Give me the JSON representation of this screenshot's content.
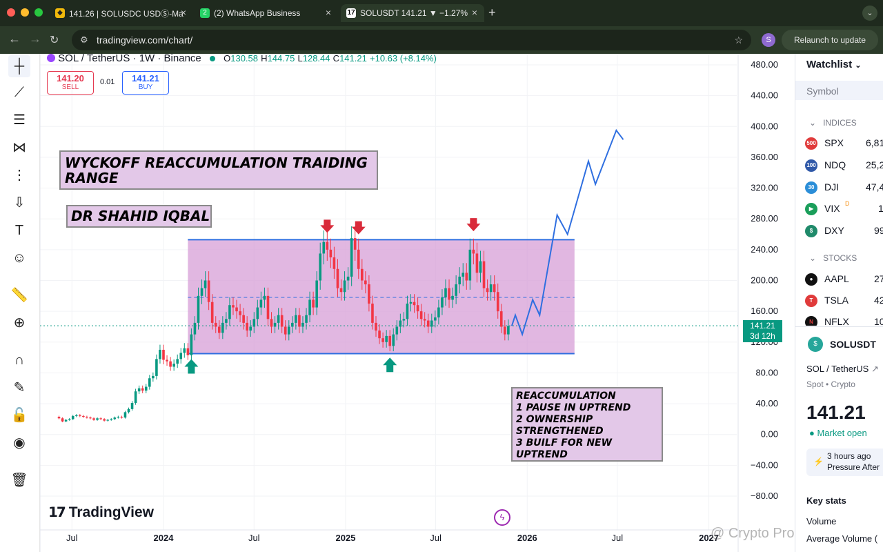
{
  "browser": {
    "tabs": [
      {
        "title": "141.26 | SOLUSDC USDⓈ-Ma",
        "icon": "binance-icon"
      },
      {
        "title": "(2) WhatsApp Business",
        "icon": "whatsapp-icon"
      },
      {
        "title": "SOLUSDT 141.21 ▼ −1.27%",
        "icon": "tradingview-icon",
        "active": true
      }
    ],
    "url": "tradingview.com/chart/",
    "relaunch": "Relaunch to update",
    "avatar_letter": "S"
  },
  "chart_header": {
    "symbol_line": "SOL / TetherUS · 1W · Binance",
    "o_label": "O",
    "o": "130.58",
    "h_label": "H",
    "h": "144.75",
    "l_label": "L",
    "l": "128.44",
    "c_label": "C",
    "c": "141.21",
    "change": "+10.63 (+8.14%)",
    "sell_price": "141.20",
    "sell_label": "SELL",
    "spread": "0.01",
    "buy_price": "141.21",
    "buy_label": "BUY"
  },
  "annotations": {
    "title": "WYCKOFF REACCUMULATION TRAIDING RANGE",
    "author": "DR SHAHID IQBAL",
    "notes": [
      "REACCUMULATION",
      "1 PAUSE IN UPTREND",
      "2 OWNERSHIP",
      "STRENGTHENED",
      "3 BUILF FOR NEW",
      "UPTREND"
    ]
  },
  "price_label": {
    "price": "141.21",
    "countdown": "3d 12h"
  },
  "logo": "TradingView",
  "watermark": "@ Crypto Pro Alerts",
  "colors": {
    "up": "#089981",
    "down": "#f23645",
    "range_fill": "#d59bd6",
    "range_line": "#2f6fe0",
    "projection": "#2f6fe0",
    "arrow_down": "#d92b3a"
  },
  "chart_data": {
    "type": "candlestick",
    "symbol": "SOL / TetherUS",
    "interval": "1W",
    "y_ticks": [
      "480.00",
      "440.00",
      "400.00",
      "360.00",
      "320.00",
      "280.00",
      "240.00",
      "200.00",
      "160.00",
      "120.00",
      "80.00",
      "40.00",
      "0.00",
      "−40.00",
      "−80.00"
    ],
    "y_range": [
      -80,
      480
    ],
    "x_ticks": [
      "Jul",
      "2024",
      "Jul",
      "2025",
      "Jul",
      "2026",
      "Jul",
      "2027"
    ],
    "range_box": {
      "top": 253,
      "bottom": 105
    },
    "range_mid": 178,
    "current_price": 141.21,
    "candles": [
      {
        "t": "2023-06-05",
        "o": 23,
        "c": 21
      },
      {
        "t": "2023-06-12",
        "o": 21,
        "c": 17
      },
      {
        "t": "2023-06-19",
        "o": 17,
        "c": 19
      },
      {
        "t": "2023-06-26",
        "o": 19,
        "c": 20
      },
      {
        "t": "2023-07-03",
        "o": 20,
        "c": 24
      },
      {
        "t": "2023-07-10",
        "o": 24,
        "c": 25
      },
      {
        "t": "2023-07-17",
        "o": 25,
        "c": 24
      },
      {
        "t": "2023-07-24",
        "o": 24,
        "c": 23
      },
      {
        "t": "2023-07-31",
        "o": 23,
        "c": 22
      },
      {
        "t": "2023-08-07",
        "o": 22,
        "c": 21
      },
      {
        "t": "2023-08-14",
        "o": 21,
        "c": 19
      },
      {
        "t": "2023-08-21",
        "o": 19,
        "c": 21
      },
      {
        "t": "2023-08-28",
        "o": 21,
        "c": 20
      },
      {
        "t": "2023-09-04",
        "o": 20,
        "c": 18
      },
      {
        "t": "2023-09-11",
        "o": 18,
        "c": 19
      },
      {
        "t": "2023-09-18",
        "o": 19,
        "c": 20
      },
      {
        "t": "2023-09-25",
        "o": 20,
        "c": 22
      },
      {
        "t": "2023-10-02",
        "o": 22,
        "c": 23
      },
      {
        "t": "2023-10-09",
        "o": 23,
        "c": 22
      },
      {
        "t": "2023-10-16",
        "o": 22,
        "c": 29
      },
      {
        "t": "2023-10-23",
        "o": 29,
        "c": 33
      },
      {
        "t": "2023-10-30",
        "o": 33,
        "c": 41
      },
      {
        "t": "2023-11-06",
        "o": 41,
        "c": 56
      },
      {
        "t": "2023-11-13",
        "o": 56,
        "c": 60
      },
      {
        "t": "2023-11-20",
        "o": 60,
        "c": 57
      },
      {
        "t": "2023-11-27",
        "o": 57,
        "c": 62
      },
      {
        "t": "2023-12-04",
        "o": 62,
        "c": 73
      },
      {
        "t": "2023-12-11",
        "o": 73,
        "c": 76
      },
      {
        "t": "2023-12-18",
        "o": 76,
        "c": 98
      },
      {
        "t": "2023-12-25",
        "o": 98,
        "c": 110
      },
      {
        "t": "2024-01-01",
        "o": 110,
        "c": 97
      },
      {
        "t": "2024-01-08",
        "o": 97,
        "c": 95
      },
      {
        "t": "2024-01-15",
        "o": 95,
        "c": 88
      },
      {
        "t": "2024-01-22",
        "o": 88,
        "c": 92
      },
      {
        "t": "2024-01-29",
        "o": 92,
        "c": 98
      },
      {
        "t": "2024-02-05",
        "o": 98,
        "c": 106
      },
      {
        "t": "2024-02-12",
        "o": 106,
        "c": 112
      },
      {
        "t": "2024-02-19",
        "o": 112,
        "c": 103
      },
      {
        "t": "2024-02-26",
        "o": 103,
        "c": 130
      },
      {
        "t": "2024-03-04",
        "o": 130,
        "c": 145
      },
      {
        "t": "2024-03-11",
        "o": 145,
        "c": 180
      },
      {
        "t": "2024-03-18",
        "o": 180,
        "c": 190
      },
      {
        "t": "2024-03-25",
        "o": 190,
        "c": 200
      },
      {
        "t": "2024-04-01",
        "o": 200,
        "c": 172
      },
      {
        "t": "2024-04-08",
        "o": 172,
        "c": 145
      },
      {
        "t": "2024-04-15",
        "o": 145,
        "c": 140
      },
      {
        "t": "2024-04-22",
        "o": 140,
        "c": 132
      },
      {
        "t": "2024-04-29",
        "o": 132,
        "c": 145
      },
      {
        "t": "2024-05-06",
        "o": 145,
        "c": 150
      },
      {
        "t": "2024-05-13",
        "o": 150,
        "c": 168
      },
      {
        "t": "2024-05-20",
        "o": 168,
        "c": 165
      },
      {
        "t": "2024-05-27",
        "o": 165,
        "c": 160
      },
      {
        "t": "2024-06-03",
        "o": 160,
        "c": 155
      },
      {
        "t": "2024-06-10",
        "o": 155,
        "c": 145
      },
      {
        "t": "2024-06-17",
        "o": 145,
        "c": 135
      },
      {
        "t": "2024-06-24",
        "o": 135,
        "c": 140
      },
      {
        "t": "2024-07-01",
        "o": 140,
        "c": 150
      },
      {
        "t": "2024-07-08",
        "o": 150,
        "c": 165
      },
      {
        "t": "2024-07-15",
        "o": 165,
        "c": 175
      },
      {
        "t": "2024-07-22",
        "o": 175,
        "c": 180
      },
      {
        "t": "2024-07-29",
        "o": 180,
        "c": 150
      },
      {
        "t": "2024-08-05",
        "o": 150,
        "c": 140
      },
      {
        "t": "2024-08-12",
        "o": 140,
        "c": 145
      },
      {
        "t": "2024-08-19",
        "o": 145,
        "c": 155
      },
      {
        "t": "2024-08-26",
        "o": 155,
        "c": 140
      },
      {
        "t": "2024-09-02",
        "o": 140,
        "c": 130
      },
      {
        "t": "2024-09-09",
        "o": 130,
        "c": 140
      },
      {
        "t": "2024-09-16",
        "o": 140,
        "c": 145
      },
      {
        "t": "2024-09-23",
        "o": 145,
        "c": 155
      },
      {
        "t": "2024-09-30",
        "o": 155,
        "c": 140
      },
      {
        "t": "2024-10-07",
        "o": 140,
        "c": 145
      },
      {
        "t": "2024-10-14",
        "o": 145,
        "c": 155
      },
      {
        "t": "2024-10-21",
        "o": 155,
        "c": 175
      },
      {
        "t": "2024-10-28",
        "o": 175,
        "c": 165
      },
      {
        "t": "2024-11-04",
        "o": 165,
        "c": 200
      },
      {
        "t": "2024-11-11",
        "o": 200,
        "c": 235
      },
      {
        "t": "2024-11-18",
        "o": 235,
        "c": 250
      },
      {
        "t": "2024-11-25",
        "o": 250,
        "c": 240
      },
      {
        "t": "2024-12-02",
        "o": 240,
        "c": 230
      },
      {
        "t": "2024-12-09",
        "o": 230,
        "c": 215
      },
      {
        "t": "2024-12-16",
        "o": 215,
        "c": 190
      },
      {
        "t": "2024-12-23",
        "o": 190,
        "c": 185
      },
      {
        "t": "2024-12-30",
        "o": 185,
        "c": 200
      },
      {
        "t": "2025-01-06",
        "o": 200,
        "c": 205
      },
      {
        "t": "2025-01-13",
        "o": 205,
        "c": 255
      },
      {
        "t": "2025-01-20",
        "o": 255,
        "c": 240
      },
      {
        "t": "2025-01-27",
        "o": 240,
        "c": 215
      },
      {
        "t": "2025-02-03",
        "o": 215,
        "c": 200
      },
      {
        "t": "2025-02-10",
        "o": 200,
        "c": 195
      },
      {
        "t": "2025-02-17",
        "o": 195,
        "c": 170
      },
      {
        "t": "2025-02-24",
        "o": 170,
        "c": 145
      },
      {
        "t": "2025-03-03",
        "o": 145,
        "c": 135
      },
      {
        "t": "2025-03-10",
        "o": 135,
        "c": 125
      },
      {
        "t": "2025-03-17",
        "o": 125,
        "c": 120
      },
      {
        "t": "2025-03-24",
        "o": 120,
        "c": 128
      },
      {
        "t": "2025-03-31",
        "o": 128,
        "c": 115
      },
      {
        "t": "2025-04-07",
        "o": 115,
        "c": 130
      },
      {
        "t": "2025-04-14",
        "o": 130,
        "c": 140
      },
      {
        "t": "2025-04-21",
        "o": 140,
        "c": 148
      },
      {
        "t": "2025-04-28",
        "o": 148,
        "c": 150
      },
      {
        "t": "2025-05-05",
        "o": 150,
        "c": 170
      },
      {
        "t": "2025-05-12",
        "o": 170,
        "c": 172
      },
      {
        "t": "2025-05-19",
        "o": 172,
        "c": 168
      },
      {
        "t": "2025-05-26",
        "o": 168,
        "c": 160
      },
      {
        "t": "2025-06-02",
        "o": 160,
        "c": 150
      },
      {
        "t": "2025-06-09",
        "o": 150,
        "c": 148
      },
      {
        "t": "2025-06-16",
        "o": 148,
        "c": 140
      },
      {
        "t": "2025-06-23",
        "o": 140,
        "c": 148
      },
      {
        "t": "2025-06-30",
        "o": 148,
        "c": 152
      },
      {
        "t": "2025-07-07",
        "o": 152,
        "c": 165
      },
      {
        "t": "2025-07-14",
        "o": 165,
        "c": 178
      },
      {
        "t": "2025-07-21",
        "o": 178,
        "c": 190
      },
      {
        "t": "2025-07-28",
        "o": 190,
        "c": 175
      },
      {
        "t": "2025-08-04",
        "o": 175,
        "c": 180
      },
      {
        "t": "2025-08-11",
        "o": 180,
        "c": 195
      },
      {
        "t": "2025-08-18",
        "o": 195,
        "c": 205
      },
      {
        "t": "2025-08-25",
        "o": 205,
        "c": 210
      },
      {
        "t": "2025-09-01",
        "o": 210,
        "c": 200
      },
      {
        "t": "2025-09-08",
        "o": 200,
        "c": 240
      },
      {
        "t": "2025-09-15",
        "o": 240,
        "c": 235
      },
      {
        "t": "2025-09-22",
        "o": 235,
        "c": 210
      },
      {
        "t": "2025-09-29",
        "o": 210,
        "c": 225
      },
      {
        "t": "2025-10-06",
        "o": 225,
        "c": 190
      },
      {
        "t": "2025-10-13",
        "o": 190,
        "c": 185
      },
      {
        "t": "2025-10-20",
        "o": 185,
        "c": 195
      },
      {
        "t": "2025-10-27",
        "o": 195,
        "c": 185
      },
      {
        "t": "2025-11-03",
        "o": 185,
        "c": 160
      },
      {
        "t": "2025-11-10",
        "o": 160,
        "c": 140
      },
      {
        "t": "2025-11-17",
        "o": 140,
        "c": 130
      },
      {
        "t": "2025-11-24",
        "o": 130,
        "c": 141
      }
    ],
    "projection": [
      {
        "t": "2025-12-01",
        "v": 141
      },
      {
        "t": "2025-12-08",
        "v": 155
      },
      {
        "t": "2025-12-22",
        "v": 130
      },
      {
        "t": "2026-01-12",
        "v": 175
      },
      {
        "t": "2026-01-26",
        "v": 155
      },
      {
        "t": "2026-03-02",
        "v": 285
      },
      {
        "t": "2026-03-23",
        "v": 260
      },
      {
        "t": "2026-05-04",
        "v": 355
      },
      {
        "t": "2026-05-18",
        "v": 325
      },
      {
        "t": "2026-06-29",
        "v": 395
      },
      {
        "t": "2026-07-13",
        "v": 383
      }
    ],
    "down_arrows": [
      {
        "t": "2024-11-25",
        "v": 270
      },
      {
        "t": "2025-01-27",
        "v": 268
      },
      {
        "t": "2025-09-15",
        "v": 272
      }
    ],
    "up_arrows": [
      {
        "t": "2024-02-26",
        "v": 88
      },
      {
        "t": "2025-03-31",
        "v": 90
      }
    ]
  },
  "watchlist": {
    "title": "Watchlist",
    "symbol_header": "Symbol",
    "sections": [
      {
        "name": "INDICES",
        "rows": [
          {
            "sym": "SPX",
            "val": "6,81",
            "badge": "500",
            "color": "#e03b3b"
          },
          {
            "sym": "NDQ",
            "val": "25,2",
            "badge": "100",
            "color": "#3059a8"
          },
          {
            "sym": "DJI",
            "val": "47,4",
            "badge": "30",
            "color": "#2b8ed8"
          },
          {
            "sym": "VIX",
            "val": "1",
            "badge": "▶",
            "color": "#1a9e5a",
            "flag": "D"
          },
          {
            "sym": "DXY",
            "val": "99",
            "badge": "$",
            "color": "#1f8a6a"
          }
        ]
      },
      {
        "name": "STOCKS",
        "rows": [
          {
            "sym": "AAPL",
            "val": "27",
            "badge": "",
            "color": "#111111"
          },
          {
            "sym": "TSLA",
            "val": "42",
            "badge": "T",
            "color": "#e03b3b"
          },
          {
            "sym": "NFLX",
            "val": "10",
            "badge": "N",
            "color": "#111111"
          }
        ]
      }
    ],
    "detail": {
      "symbol": "SOLUSDT",
      "name": "SOL / TetherUS",
      "type": "Spot • Crypto",
      "price": "141.21",
      "status": "Market open",
      "news_time": "3 hours ago",
      "news_text": "Pressure After",
      "key_stats": "Key stats",
      "volume": "Volume",
      "avg_volume": "Average Volume ("
    }
  }
}
